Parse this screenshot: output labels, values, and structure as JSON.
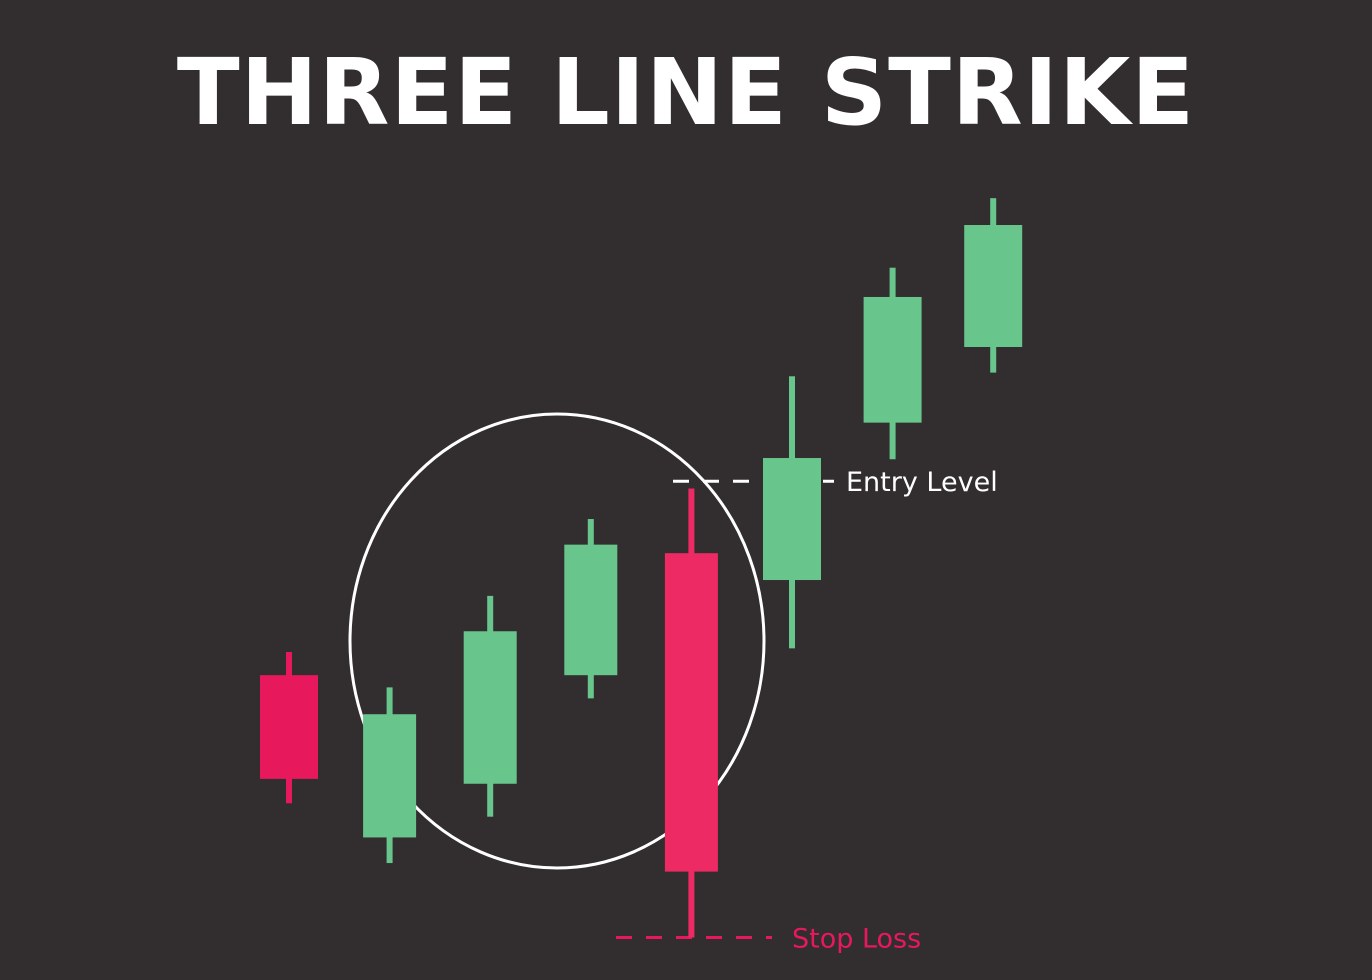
{
  "chart_data": {
    "type": "candlestick",
    "title": "THREE LINE STRIKE",
    "xlabel": "",
    "ylabel": "",
    "grid": false,
    "candles": [
      {
        "high": 40.0,
        "open": 38.1,
        "close": 29.6,
        "low": 27.6
      },
      {
        "high": 37.1,
        "open": 24.8,
        "close": 34.9,
        "low": 22.7
      },
      {
        "high": 44.6,
        "open": 29.2,
        "close": 41.7,
        "low": 26.5
      },
      {
        "high": 50.9,
        "open": 38.1,
        "close": 48.8,
        "low": 36.2
      },
      {
        "high": 53.4,
        "open": 48.1,
        "close": 22.0,
        "low": 16.6
      },
      {
        "high": 62.6,
        "open": 45.9,
        "close": 55.9,
        "low": 40.3
      },
      {
        "high": 71.5,
        "open": 58.8,
        "close": 69.1,
        "low": 55.8
      },
      {
        "high": 77.2,
        "open": 65.0,
        "close": 75.0,
        "low": 62.9
      }
    ],
    "colors": {
      "bullish": "#68c58c",
      "bearish": "#e8185c",
      "bearish_strike": "#ee2a65",
      "background": "#322e2f",
      "annotation_line": "#ffffff",
      "stop_loss": "#e8185c"
    },
    "annotations": [
      {
        "kind": "level",
        "label": "Entry Level",
        "value": 54.0,
        "color": "#ffffff"
      },
      {
        "kind": "level",
        "label": "Stop Loss",
        "value": 16.6,
        "color": "#e8185c"
      },
      {
        "kind": "ellipse",
        "label": "",
        "highlights_candles": [
          1,
          2,
          3,
          4
        ],
        "color": "#ffffff"
      }
    ]
  }
}
